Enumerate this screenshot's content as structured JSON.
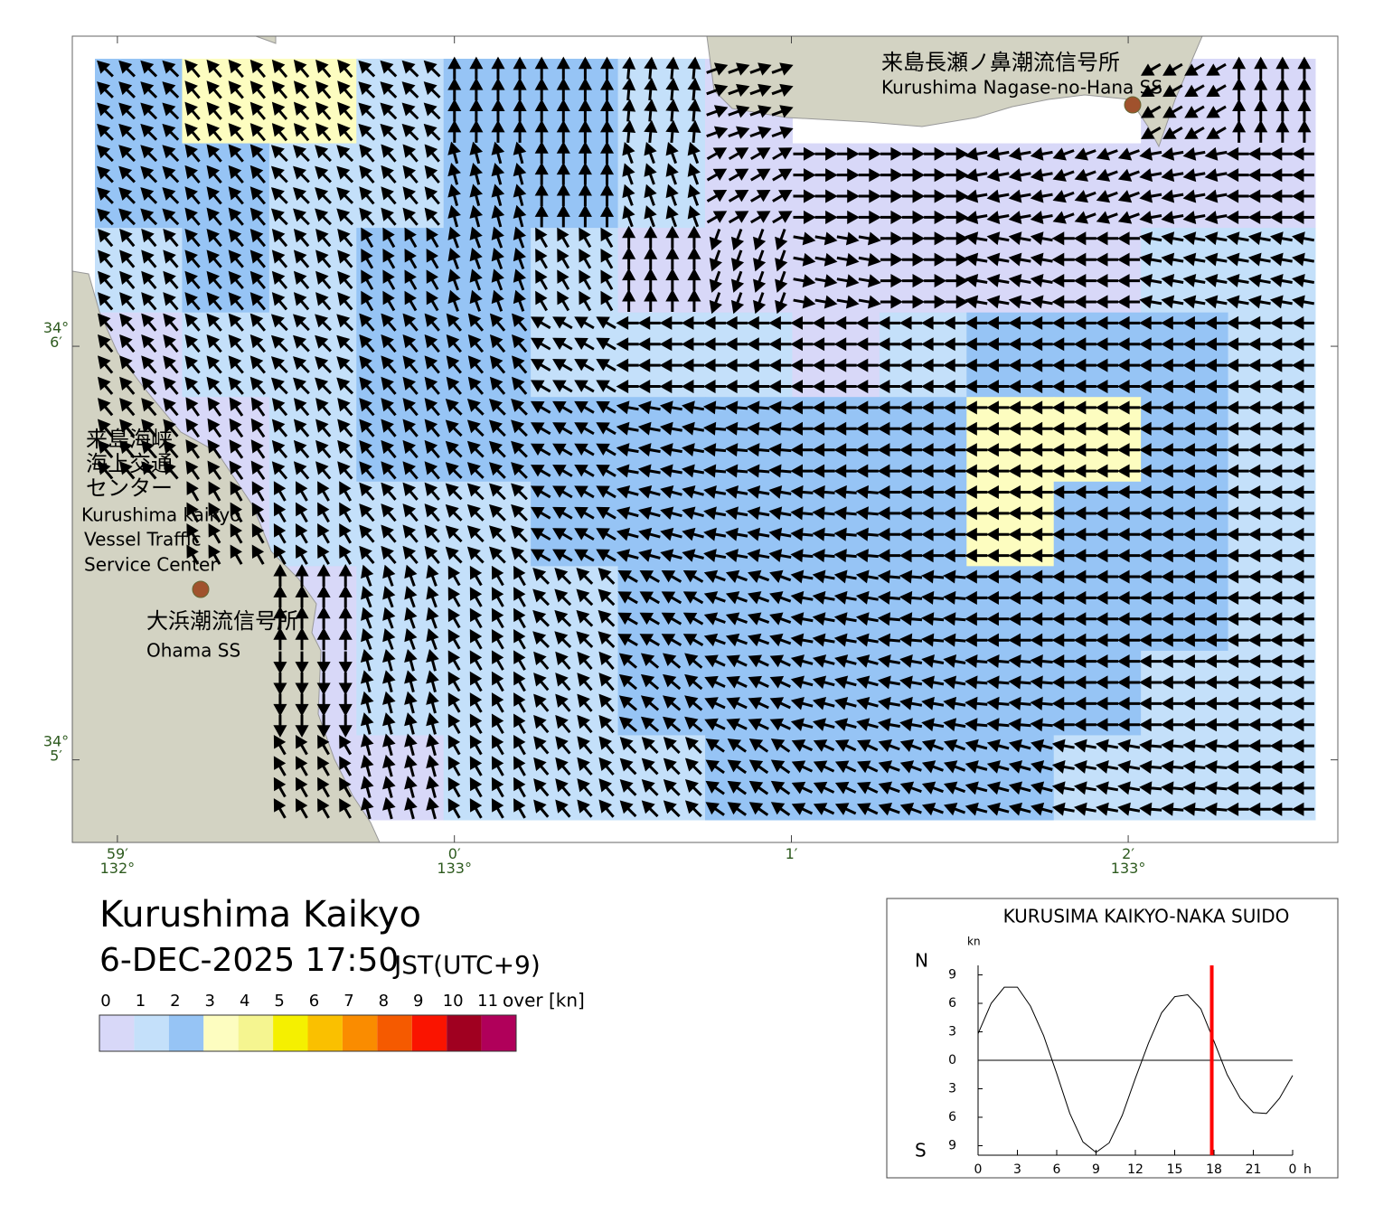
{
  "map": {
    "xlim": [
      132.9811,
      133.0437
    ],
    "ylim": [
      34.08,
      34.1125
    ],
    "xticks": [
      {
        "value": 132.98333,
        "label": "59′\n132°"
      },
      {
        "value": 133.0,
        "label": "0′\n133°"
      },
      {
        "value": 133.01667,
        "label": "1′"
      },
      {
        "value": 133.03333,
        "label": "2′\n133°"
      }
    ],
    "yticks": [
      {
        "value": 34.1,
        "label": "34°\n6′"
      },
      {
        "value": 34.08333,
        "label": "34°\n5′"
      }
    ],
    "labels": [
      {
        "text": "来島長瀬ノ鼻潮流信号所"
      },
      {
        "text": "Kurushima Nagase-no-Hana SS"
      },
      {
        "text": "来島海峡"
      },
      {
        "text": "海上交通"
      },
      {
        "text": "センター"
      },
      {
        "text": "Kurushima kaikyo"
      },
      {
        "text": "Vessel Traffic"
      },
      {
        "text": "Service Center"
      },
      {
        "text": "大浜潮流信号所"
      },
      {
        "text": "Ohama SS"
      }
    ]
  },
  "current_grid": {
    "speed_class": [
      [
        2,
        3,
        3,
        1,
        2,
        2,
        1,
        0,
        null,
        null,
        null,
        null,
        0,
        0
      ],
      [
        2,
        2,
        1,
        1,
        2,
        2,
        1,
        0,
        0,
        0,
        0,
        0,
        0,
        0
      ],
      [
        1,
        2,
        1,
        2,
        2,
        1,
        0,
        0,
        0,
        0,
        0,
        0,
        1,
        1
      ],
      [
        0,
        1,
        1,
        2,
        2,
        1,
        1,
        1,
        0,
        1,
        2,
        2,
        2,
        1
      ],
      [
        0,
        0,
        1,
        2,
        2,
        2,
        2,
        2,
        2,
        2,
        3,
        3,
        2,
        1
      ],
      [
        null,
        0,
        1,
        1,
        1,
        2,
        2,
        2,
        2,
        2,
        3,
        2,
        2,
        1
      ],
      [
        null,
        null,
        0,
        1,
        1,
        1,
        2,
        2,
        2,
        2,
        2,
        2,
        2,
        1
      ],
      [
        null,
        null,
        0,
        1,
        1,
        1,
        2,
        2,
        2,
        2,
        2,
        2,
        1,
        1
      ],
      [
        null,
        null,
        0,
        0,
        1,
        1,
        1,
        2,
        2,
        2,
        2,
        1,
        1,
        1
      ]
    ],
    "direction": [
      [
        315,
        320,
        320,
        315,
        0,
        0,
        5,
        70,
        null,
        null,
        null,
        null,
        240,
        0
      ],
      [
        315,
        320,
        315,
        320,
        345,
        0,
        340,
        60,
        90,
        90,
        260,
        250,
        260,
        270
      ],
      [
        320,
        320,
        320,
        330,
        340,
        330,
        0,
        200,
        100,
        90,
        280,
        270,
        280,
        280
      ],
      [
        320,
        320,
        315,
        320,
        320,
        300,
        270,
        270,
        270,
        270,
        270,
        270,
        270,
        270
      ],
      [
        320,
        325,
        320,
        320,
        315,
        300,
        280,
        275,
        270,
        270,
        270,
        270,
        270,
        270
      ],
      [
        null,
        330,
        330,
        320,
        315,
        300,
        285,
        280,
        275,
        270,
        270,
        270,
        270,
        270
      ],
      [
        null,
        null,
        0,
        340,
        330,
        315,
        300,
        290,
        280,
        275,
        270,
        270,
        270,
        270
      ],
      [
        null,
        null,
        180,
        345,
        330,
        320,
        310,
        295,
        285,
        280,
        275,
        270,
        270,
        270
      ],
      [
        null,
        null,
        330,
        345,
        330,
        320,
        315,
        305,
        295,
        290,
        285,
        280,
        275,
        270
      ]
    ]
  },
  "title": "Kurushima Kaikyo",
  "datetime": "6-DEC-2025 17:50",
  "timezone": "JST(UTC+9)",
  "colorbar": {
    "labels": [
      "0",
      "1",
      "2",
      "3",
      "4",
      "5",
      "6",
      "7",
      "8",
      "9",
      "10",
      "11"
    ],
    "over_label": "over [kn]",
    "colors": [
      "#d8d8f8",
      "#c4e0fa",
      "#96c4f5",
      "#fdfdc0",
      "#f5f590",
      "#f5f000",
      "#fac000",
      "#fa8c00",
      "#f55a00",
      "#fa1400",
      "#a00020",
      "#b0005a"
    ]
  },
  "chart_data": {
    "type": "line",
    "title": "KURUSIMA KAIKYO-NAKA SUIDO",
    "y_unit": "kn",
    "north_label": "N",
    "south_label": "S",
    "x_unit": "h",
    "x": [
      0,
      1,
      2,
      3,
      4,
      5,
      6,
      7,
      8,
      9,
      10,
      11,
      12,
      13,
      14,
      15,
      16,
      17,
      18,
      19,
      20,
      21,
      22,
      23,
      24
    ],
    "series": [
      {
        "color": "#000000",
        "values": [
          2.8,
          6.0,
          7.7,
          7.7,
          5.7,
          2.6,
          -1.4,
          -5.6,
          -8.6,
          -9.7,
          -8.7,
          -5.8,
          -1.9,
          1.8,
          5.0,
          6.7,
          6.9,
          5.4,
          2.0,
          -1.5,
          -4.0,
          -5.5,
          -5.6,
          -4.0,
          -1.6
        ]
      }
    ],
    "xlim": [
      0,
      24
    ],
    "ylim": [
      -10,
      10
    ],
    "xticks": [
      0,
      3,
      6,
      9,
      12,
      15,
      18,
      21,
      {
        "value": 24,
        "label": "0"
      }
    ],
    "yticks": [
      {
        "value": 9,
        "label": "9"
      },
      {
        "value": 6,
        "label": "6"
      },
      {
        "value": 3,
        "label": "3"
      },
      0,
      {
        "value": -3,
        "label": "3"
      },
      {
        "value": -6,
        "label": "6"
      },
      {
        "value": -9,
        "label": "9"
      }
    ],
    "now": 17.83,
    "now_color": "#ff0000"
  }
}
